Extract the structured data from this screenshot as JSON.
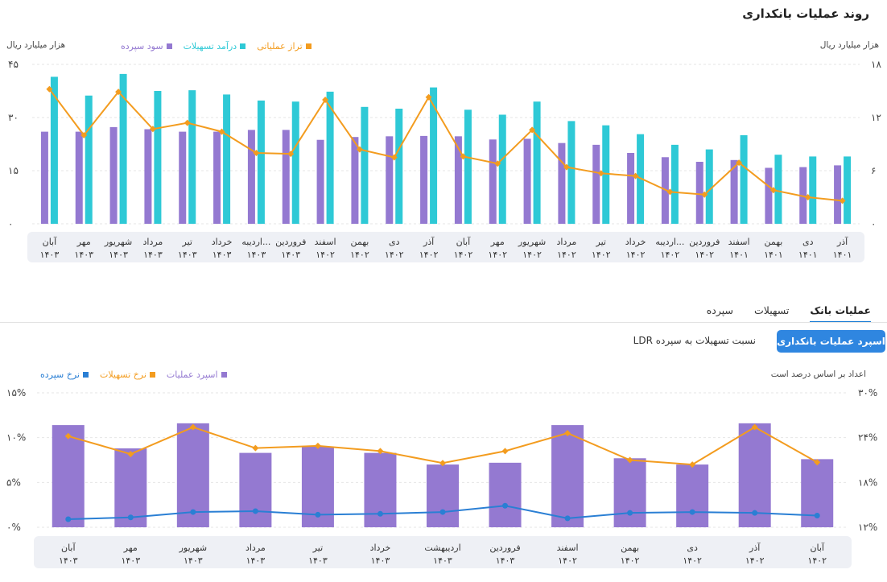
{
  "title": "روند عملیات بانکداری",
  "chart1": {
    "left_unit": "هزار میلیارد ریال",
    "right_unit": "هزار میلیارد ریال",
    "legend": [
      {
        "label": "تراز عملیاتی",
        "color": "#f39c1f"
      },
      {
        "label": "درآمد تسهیلات",
        "color": "#2ec9d6"
      },
      {
        "label": "سود سپرده",
        "color": "#9479d1"
      }
    ],
    "left_ticks": [
      "۰",
      "۱۵",
      "۳۰",
      "۴۵"
    ],
    "right_ticks": [
      "۰",
      "۶",
      "۱۲",
      "۱۸"
    ]
  },
  "chart2": {
    "tabs": [
      {
        "label": "عملیات بانک",
        "active": true
      },
      {
        "label": "تسهیلات",
        "active": false
      },
      {
        "label": "سپرده",
        "active": false
      }
    ],
    "button_active": "اسپرد عملیات بانکداری",
    "button_plain": "نسبت تسهیلات به سپرده LDR",
    "note": "اعداد بر اساس درصد است",
    "legend": [
      {
        "label": "اسپرد عملیات",
        "color": "#9479d1"
      },
      {
        "label": "نرخ تسهیلات",
        "color": "#f39c1f"
      },
      {
        "label": "نرخ سپرده",
        "color": "#2a7fd4"
      }
    ],
    "left_ticks": [
      "۰%",
      "۵%",
      "۱۰%",
      "۱۵%"
    ],
    "right_ticks": [
      "۱۲%",
      "۱۸%",
      "۲۴%",
      "۳۰%"
    ]
  },
  "chart_data": [
    {
      "type": "bar",
      "categories": [
        "آذر ۱۴۰۱",
        "دی ۱۴۰۱",
        "بهمن ۱۴۰۱",
        "اسفند ۱۴۰۱",
        "فروردین ۱۴۰۲",
        "اردیبه... ۱۴۰۲",
        "خرداد ۱۴۰۲",
        "تیر ۱۴۰۲",
        "مرداد ۱۴۰۲",
        "شهریور ۱۴۰۲",
        "مهر ۱۴۰۲",
        "آبان ۱۴۰۲",
        "آذر ۱۴۰۲",
        "دی ۱۴۰۲",
        "بهمن ۱۴۰۲",
        "اسفند ۱۴۰۲",
        "فروردین ۱۴۰۳",
        "اردیبه... ۱۴۰۳",
        "خرداد ۱۴۰۳",
        "تیر ۱۴۰۳",
        "مرداد ۱۴۰۳",
        "شهریور ۱۴۰۳",
        "مهر ۱۴۰۳",
        "آبان ۱۴۰۳"
      ],
      "series": [
        {
          "name": "سود سپرده",
          "axis": "left",
          "values": [
            16.5,
            16.0,
            15.8,
            18.0,
            17.5,
            18.8,
            20.0,
            22.3,
            22.8,
            24.0,
            23.8,
            24.7,
            24.8,
            24.7,
            24.5,
            23.7,
            26.5,
            26.5,
            26.0,
            26.0,
            26.7,
            27.3,
            26.0,
            26.0
          ]
        },
        {
          "name": "درآمد تسهیلات",
          "axis": "left",
          "values": [
            19.0,
            19.0,
            19.5,
            25.0,
            21.0,
            22.3,
            25.3,
            27.8,
            29.0,
            34.5,
            30.8,
            32.2,
            38.5,
            32.5,
            33.0,
            37.3,
            34.5,
            34.8,
            36.5,
            37.7,
            37.5,
            42.3,
            36.2,
            41.5
          ]
        },
        {
          "name": "تراز عملیاتی",
          "axis": "right",
          "values": [
            2.6,
            3.0,
            3.8,
            6.9,
            3.3,
            3.6,
            5.4,
            5.7,
            6.4,
            10.6,
            6.8,
            7.6,
            14.3,
            7.5,
            8.4,
            14.0,
            7.9,
            8.0,
            10.4,
            11.4,
            10.7,
            14.9,
            10.0,
            15.2
          ]
        }
      ],
      "ylim_left": [
        0,
        45
      ],
      "ylim_right": [
        0,
        18
      ]
    },
    {
      "type": "bar",
      "categories": [
        "آبان ۱۴۰۲",
        "آذر ۱۴۰۲",
        "دی ۱۴۰۲",
        "بهمن ۱۴۰۲",
        "اسفند ۱۴۰۲",
        "فروردین ۱۴۰۳",
        "اردیبهشت ۱۴۰۳",
        "خرداد ۱۴۰۳",
        "تیر ۱۴۰۳",
        "مرداد ۱۴۰۳",
        "شهریور ۱۴۰۳",
        "مهر ۱۴۰۳",
        "آبان ۱۴۰۳"
      ],
      "series": [
        {
          "name": "اسپرد عملیات",
          "axis": "left",
          "values": [
            7.6,
            11.6,
            7.0,
            7.7,
            11.4,
            7.2,
            7.0,
            8.3,
            9.0,
            8.3,
            11.6,
            8.8,
            11.4
          ]
        },
        {
          "name": "نرخ تسهیلات",
          "axis": "right",
          "values": [
            20.7,
            25.4,
            20.4,
            21.0,
            24.6,
            22.2,
            20.6,
            22.2,
            22.9,
            22.6,
            25.4,
            21.8,
            24.2
          ]
        },
        {
          "name": "نرخ سپرده",
          "axis": "left",
          "values": [
            1.3,
            1.6,
            1.7,
            1.6,
            1.0,
            2.4,
            1.7,
            1.5,
            1.4,
            1.8,
            1.7,
            1.1,
            0.9
          ]
        }
      ],
      "ylim_left": [
        0,
        15
      ],
      "ylim_right": [
        12,
        30
      ]
    }
  ]
}
